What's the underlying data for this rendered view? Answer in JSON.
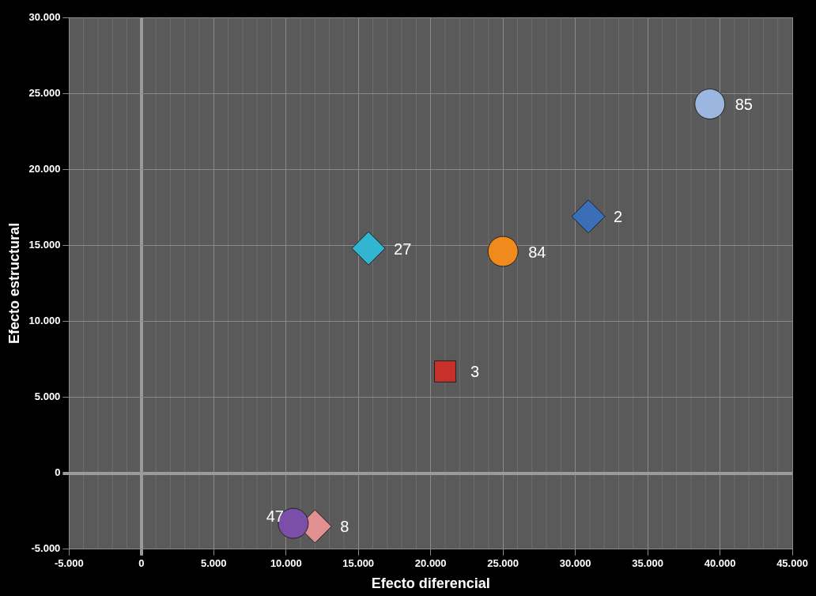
{
  "chart_data": {
    "type": "scatter",
    "xlabel": "Efecto diferencial",
    "ylabel": "Efecto estructural",
    "xlim": [
      -5000,
      45000
    ],
    "ylim": [
      -5000,
      30000
    ],
    "xticks": [
      {
        "value": -5000,
        "label": "-5.000"
      },
      0,
      {
        "value": 5000,
        "label": "5.000"
      },
      {
        "value": 10000,
        "label": "10.000"
      },
      {
        "value": 15000,
        "label": "15.000"
      },
      {
        "value": 20000,
        "label": "20.000"
      },
      {
        "value": 25000,
        "label": "25.000"
      },
      {
        "value": 30000,
        "label": "30.000"
      },
      {
        "value": 35000,
        "label": "35.000"
      },
      {
        "value": 40000,
        "label": "40.000"
      },
      {
        "value": 45000,
        "label": "45.000"
      }
    ],
    "yticks": [
      {
        "value": -5000,
        "label": "-5.000"
      },
      0,
      {
        "value": 5000,
        "label": "5.000"
      },
      {
        "value": 10000,
        "label": "10.000"
      },
      {
        "value": 15000,
        "label": "15.000"
      },
      {
        "value": 20000,
        "label": "20.000"
      },
      {
        "value": 25000,
        "label": "25.000"
      },
      {
        "value": 30000,
        "label": "30.000"
      }
    ],
    "grid": true,
    "legend": false,
    "series": [
      {
        "name": "85",
        "color": "#9bb7e0",
        "marker": "circle",
        "x": [
          39300
        ],
        "values": [
          24300
        ]
      },
      {
        "name": "2",
        "color": "#3a6fb8",
        "marker": "diamond",
        "x": [
          30900
        ],
        "values": [
          16900
        ]
      },
      {
        "name": "27",
        "color": "#31b5d0",
        "marker": "diamond",
        "x": [
          15700
        ],
        "values": [
          14800
        ]
      },
      {
        "name": "84",
        "color": "#f08a1c",
        "marker": "circle",
        "x": [
          25000
        ],
        "values": [
          14600
        ]
      },
      {
        "name": "3",
        "color": "#c8302c",
        "marker": "square",
        "x": [
          21000
        ],
        "values": [
          6700
        ]
      },
      {
        "name": "47",
        "color": "#7b4fa8",
        "marker": "circle",
        "x": [
          10500
        ],
        "values": [
          -3300
        ]
      },
      {
        "name": "8",
        "color": "#e09090",
        "marker": "diamond",
        "x": [
          12000
        ],
        "values": [
          -3500
        ]
      }
    ]
  }
}
